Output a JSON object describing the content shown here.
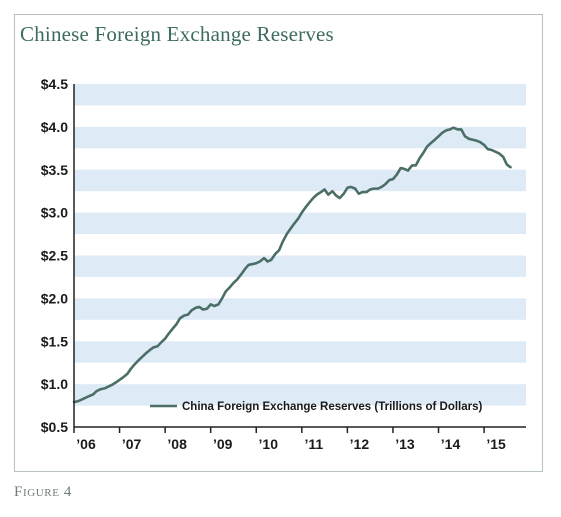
{
  "figure_label": "Figure 4",
  "chart_data": {
    "type": "line",
    "title": "Chinese Foreign Exchange Reserves",
    "xlabel": "",
    "ylabel": "",
    "ylim": [
      0.5,
      4.5
    ],
    "xlim": [
      2006.0,
      2015.92
    ],
    "y_ticks": [
      {
        "value": 4.5,
        "label": "$4.5"
      },
      {
        "value": 4.0,
        "label": "$4.0"
      },
      {
        "value": 3.5,
        "label": "$3.5"
      },
      {
        "value": 3.0,
        "label": "$3.0"
      },
      {
        "value": 2.5,
        "label": "$2.5"
      },
      {
        "value": 2.0,
        "label": "$2.0"
      },
      {
        "value": 1.5,
        "label": "$1.5"
      },
      {
        "value": 1.0,
        "label": "$1.0"
      },
      {
        "value": 0.5,
        "label": "$0.5"
      }
    ],
    "x_ticks": [
      {
        "value": 2006,
        "label": "’06"
      },
      {
        "value": 2007,
        "label": "’07"
      },
      {
        "value": 2008,
        "label": "’08"
      },
      {
        "value": 2009,
        "label": "’09"
      },
      {
        "value": 2010,
        "label": "’10"
      },
      {
        "value": 2011,
        "label": "’11"
      },
      {
        "value": 2012,
        "label": "’12"
      },
      {
        "value": 2013,
        "label": "’13"
      },
      {
        "value": 2014,
        "label": "’14"
      },
      {
        "value": 2015,
        "label": "’15"
      }
    ],
    "grid": "horizontal alternating bands",
    "legend_position": "bottom-right",
    "colors": {
      "line": "#4b6e67",
      "band": "#deebf7",
      "axis": "#222222",
      "title": "#3d6b60"
    },
    "series": [
      {
        "name": "China Foreign Exchange Reserves (Trillions of Dollars)",
        "points": [
          [
            2006.0,
            0.79
          ],
          [
            2006.08,
            0.8
          ],
          [
            2006.17,
            0.82
          ],
          [
            2006.25,
            0.84
          ],
          [
            2006.33,
            0.86
          ],
          [
            2006.42,
            0.88
          ],
          [
            2006.5,
            0.92
          ],
          [
            2006.58,
            0.94
          ],
          [
            2006.67,
            0.95
          ],
          [
            2006.75,
            0.97
          ],
          [
            2006.83,
            0.99
          ],
          [
            2006.92,
            1.02
          ],
          [
            2007.0,
            1.05
          ],
          [
            2007.08,
            1.08
          ],
          [
            2007.17,
            1.12
          ],
          [
            2007.25,
            1.18
          ],
          [
            2007.33,
            1.23
          ],
          [
            2007.42,
            1.28
          ],
          [
            2007.5,
            1.32
          ],
          [
            2007.58,
            1.36
          ],
          [
            2007.67,
            1.4
          ],
          [
            2007.75,
            1.43
          ],
          [
            2007.83,
            1.44
          ],
          [
            2007.92,
            1.49
          ],
          [
            2008.0,
            1.53
          ],
          [
            2008.08,
            1.59
          ],
          [
            2008.17,
            1.65
          ],
          [
            2008.25,
            1.7
          ],
          [
            2008.33,
            1.77
          ],
          [
            2008.42,
            1.8
          ],
          [
            2008.5,
            1.81
          ],
          [
            2008.58,
            1.86
          ],
          [
            2008.67,
            1.89
          ],
          [
            2008.75,
            1.9
          ],
          [
            2008.83,
            1.87
          ],
          [
            2008.92,
            1.88
          ],
          [
            2009.0,
            1.93
          ],
          [
            2009.08,
            1.91
          ],
          [
            2009.17,
            1.93
          ],
          [
            2009.25,
            2.0
          ],
          [
            2009.33,
            2.08
          ],
          [
            2009.42,
            2.13
          ],
          [
            2009.5,
            2.18
          ],
          [
            2009.58,
            2.22
          ],
          [
            2009.67,
            2.28
          ],
          [
            2009.75,
            2.34
          ],
          [
            2009.83,
            2.39
          ],
          [
            2009.92,
            2.4
          ],
          [
            2010.0,
            2.41
          ],
          [
            2010.08,
            2.43
          ],
          [
            2010.17,
            2.47
          ],
          [
            2010.25,
            2.43
          ],
          [
            2010.33,
            2.45
          ],
          [
            2010.42,
            2.52
          ],
          [
            2010.5,
            2.56
          ],
          [
            2010.58,
            2.66
          ],
          [
            2010.67,
            2.75
          ],
          [
            2010.75,
            2.81
          ],
          [
            2010.83,
            2.87
          ],
          [
            2010.92,
            2.93
          ],
          [
            2011.0,
            3.0
          ],
          [
            2011.08,
            3.06
          ],
          [
            2011.17,
            3.12
          ],
          [
            2011.25,
            3.17
          ],
          [
            2011.33,
            3.21
          ],
          [
            2011.42,
            3.24
          ],
          [
            2011.5,
            3.27
          ],
          [
            2011.58,
            3.21
          ],
          [
            2011.67,
            3.25
          ],
          [
            2011.75,
            3.2
          ],
          [
            2011.83,
            3.17
          ],
          [
            2011.92,
            3.22
          ],
          [
            2012.0,
            3.29
          ],
          [
            2012.08,
            3.3
          ],
          [
            2012.17,
            3.28
          ],
          [
            2012.25,
            3.22
          ],
          [
            2012.33,
            3.24
          ],
          [
            2012.42,
            3.24
          ],
          [
            2012.5,
            3.27
          ],
          [
            2012.58,
            3.28
          ],
          [
            2012.67,
            3.28
          ],
          [
            2012.75,
            3.3
          ],
          [
            2012.83,
            3.33
          ],
          [
            2012.92,
            3.38
          ],
          [
            2013.0,
            3.39
          ],
          [
            2013.08,
            3.44
          ],
          [
            2013.17,
            3.52
          ],
          [
            2013.25,
            3.51
          ],
          [
            2013.33,
            3.49
          ],
          [
            2013.42,
            3.55
          ],
          [
            2013.5,
            3.55
          ],
          [
            2013.58,
            3.63
          ],
          [
            2013.67,
            3.7
          ],
          [
            2013.75,
            3.77
          ],
          [
            2013.83,
            3.81
          ],
          [
            2013.92,
            3.85
          ],
          [
            2014.0,
            3.89
          ],
          [
            2014.08,
            3.93
          ],
          [
            2014.17,
            3.96
          ],
          [
            2014.25,
            3.97
          ],
          [
            2014.33,
            3.99
          ],
          [
            2014.42,
            3.97
          ],
          [
            2014.5,
            3.97
          ],
          [
            2014.58,
            3.89
          ],
          [
            2014.67,
            3.86
          ],
          [
            2014.75,
            3.85
          ],
          [
            2014.83,
            3.84
          ],
          [
            2014.92,
            3.82
          ],
          [
            2015.0,
            3.79
          ],
          [
            2015.08,
            3.74
          ],
          [
            2015.17,
            3.73
          ],
          [
            2015.25,
            3.71
          ],
          [
            2015.33,
            3.69
          ],
          [
            2015.42,
            3.65
          ],
          [
            2015.5,
            3.56
          ],
          [
            2015.58,
            3.53
          ]
        ]
      }
    ]
  }
}
